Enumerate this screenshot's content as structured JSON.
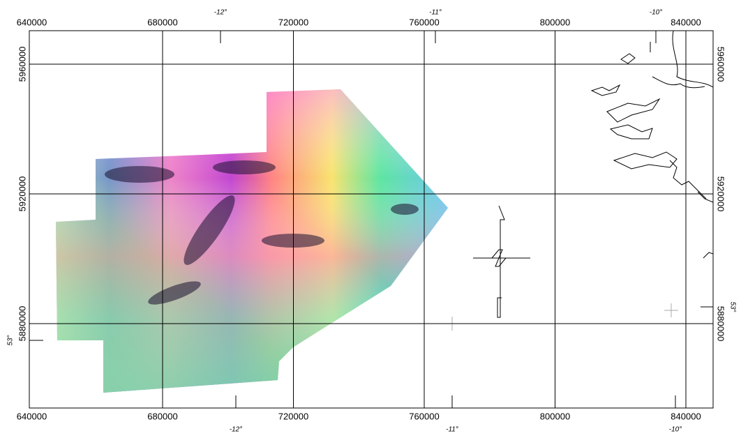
{
  "grid": {
    "eastings": [
      640000,
      680000,
      720000,
      760000,
      800000,
      840000
    ],
    "northings": [
      5960000,
      5920000,
      5880000
    ]
  },
  "graticule": {
    "top_labels": [
      "-12°",
      "-11°",
      "-10°"
    ],
    "bottom_labels": [
      "-12°",
      "-11°",
      "-10°"
    ],
    "left_label": "53°",
    "right_label": "53°"
  }
}
